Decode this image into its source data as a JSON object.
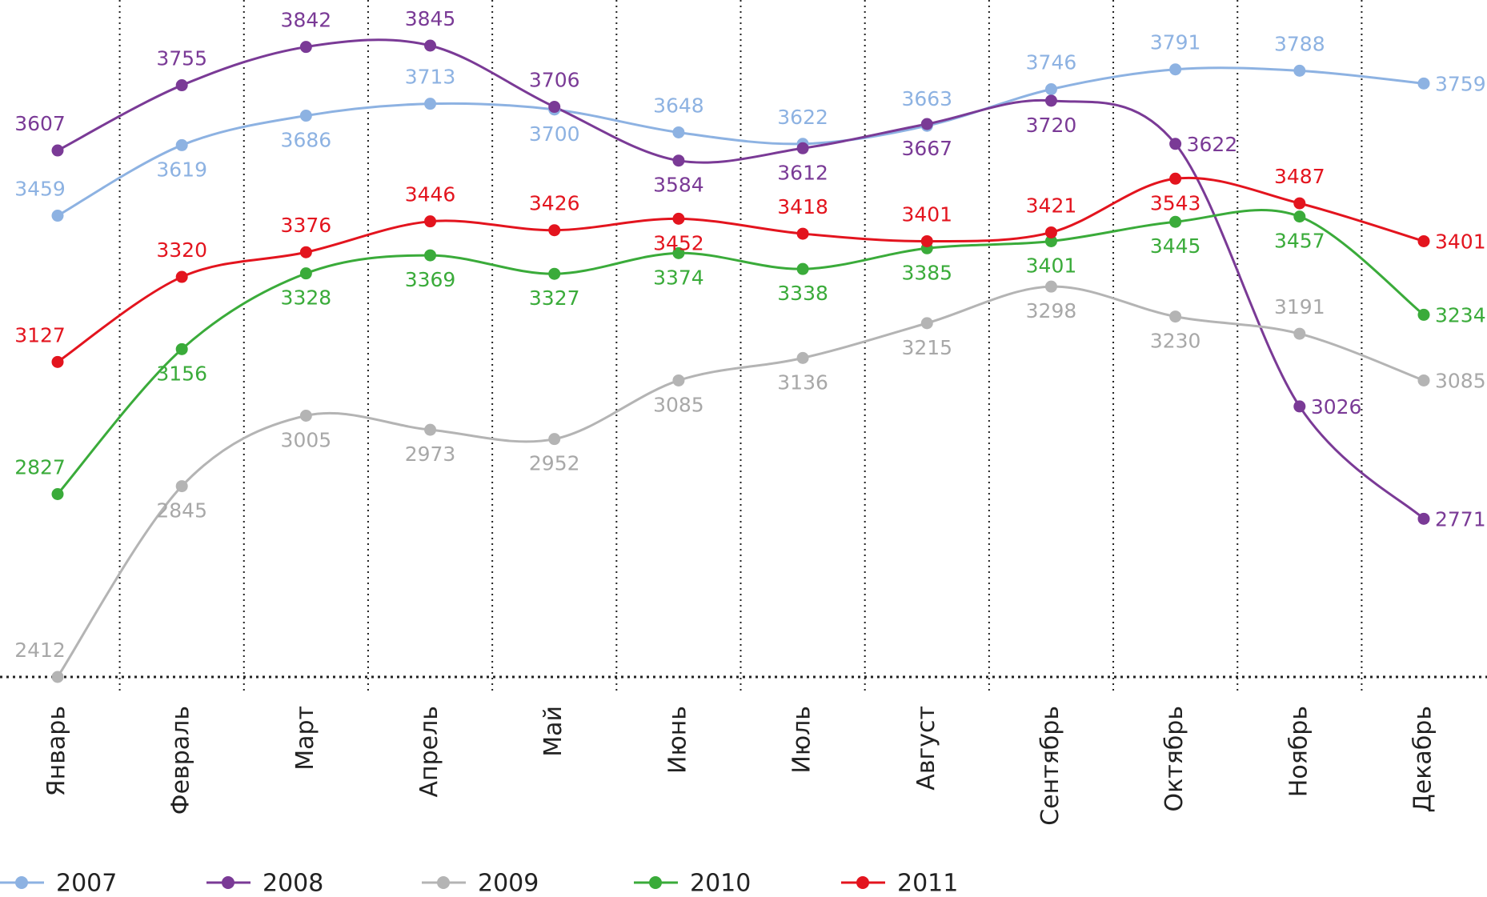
{
  "chart_data": {
    "type": "line",
    "categories": [
      "Январь",
      "Февраль",
      "Март",
      "Апрель",
      "Май",
      "Июнь",
      "Июль",
      "Август",
      "Сентябрь",
      "Октябрь",
      "Ноябрь",
      "Декабрь"
    ],
    "series": [
      {
        "name": "2007",
        "color": "#8db2e2",
        "values": [
          3459,
          3619,
          3686,
          3713,
          3700,
          3648,
          3622,
          3663,
          3746,
          3791,
          3788,
          3759
        ]
      },
      {
        "name": "2008",
        "color": "#7a3a96",
        "values": [
          3607,
          3755,
          3842,
          3845,
          3706,
          3584,
          3612,
          3667,
          3720,
          3622,
          3026,
          2771
        ]
      },
      {
        "name": "2009",
        "color": "#b4b4b4",
        "values": [
          2412,
          2845,
          3005,
          2973,
          2952,
          3085,
          3136,
          3215,
          3298,
          3230,
          3191,
          3085
        ]
      },
      {
        "name": "2010",
        "color": "#3aab3a",
        "values": [
          2827,
          3156,
          3328,
          3369,
          3327,
          3374,
          3338,
          3385,
          3401,
          3445,
          3457,
          3234
        ]
      },
      {
        "name": "2011",
        "color": "#e3141e",
        "values": [
          3127,
          3320,
          3376,
          3446,
          3426,
          3452,
          3418,
          3401,
          3421,
          3543,
          3487,
          3401
        ]
      }
    ],
    "legend": "bottom"
  }
}
